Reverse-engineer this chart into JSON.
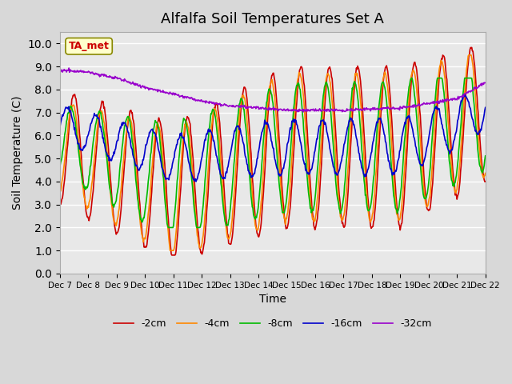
{
  "title": "Alfalfa Soil Temperatures Set A",
  "xlabel": "Time",
  "ylabel": "Soil Temperature (C)",
  "ylim": [
    0.0,
    10.5
  ],
  "yticks": [
    0.0,
    1.0,
    2.0,
    3.0,
    4.0,
    5.0,
    6.0,
    7.0,
    8.0,
    9.0,
    10.0
  ],
  "x_labels": [
    "Dec 7",
    "Dec 8",
    "Dec 9",
    "Dec 10",
    "Dec 11",
    "Dec 12",
    "Dec 13",
    "Dec 14",
    "Dec 15",
    "Dec 16",
    "Dec 17",
    "Dec 18",
    "Dec 19",
    "Dec 20",
    "Dec 21",
    "Dec 22"
  ],
  "colors": {
    "-2cm": "#cc0000",
    "-4cm": "#ff8800",
    "-8cm": "#00bb00",
    "-16cm": "#0000cc",
    "-32cm": "#9900cc"
  },
  "ta_met_label": "TA_met",
  "ta_met_color": "#cc0000",
  "ta_met_box_color": "#ffffcc",
  "grid_color": "#ffffff",
  "title_fontsize": 13,
  "axis_fontsize": 10,
  "legend_fontsize": 9
}
